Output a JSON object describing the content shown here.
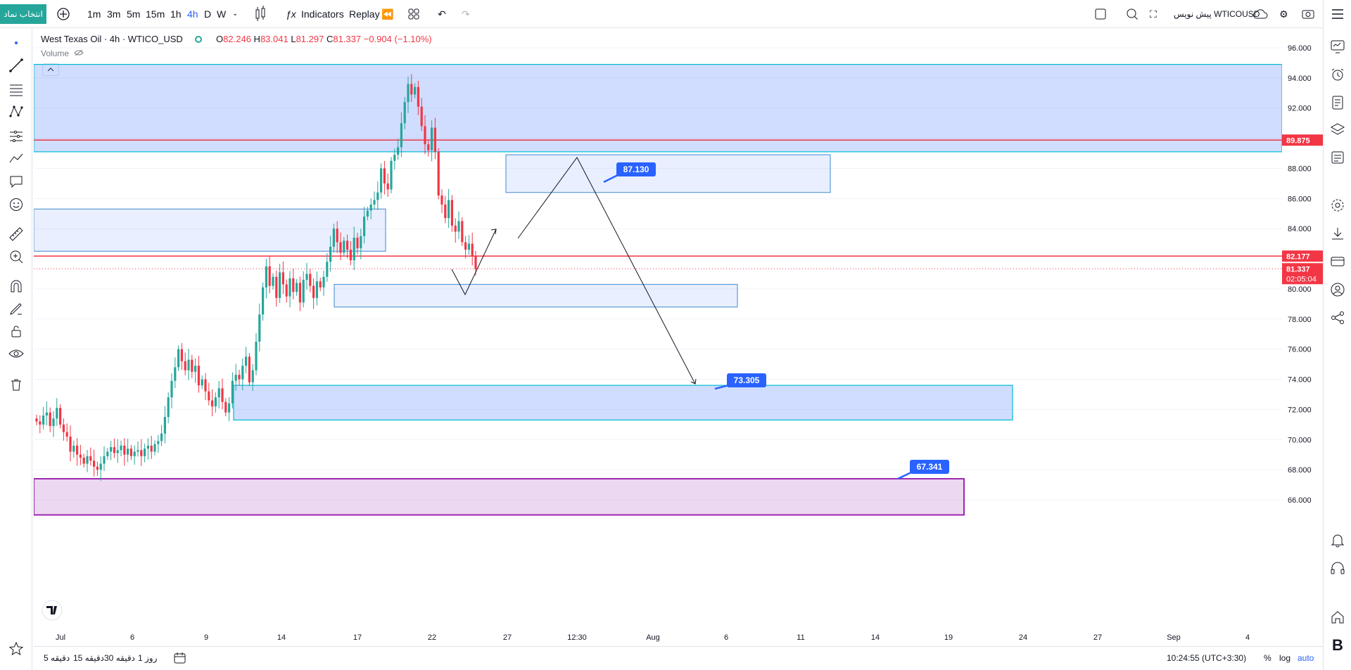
{
  "topbar": {
    "symbol_button": "انتخاب نماد",
    "timeframes": [
      "1m",
      "3m",
      "5m",
      "15m",
      "1h",
      "4h",
      "D",
      "W"
    ],
    "active_timeframe": "4h",
    "indicators_label": "Indicators",
    "replay_label": "Replay",
    "symbol_right": "WTICOUSD",
    "symbol_right_prefix": "پیش نویس"
  },
  "legend": {
    "title": "West Texas Oil · 4h · WTICO_USD",
    "open_label": "O",
    "open": "82.246",
    "high_label": "H",
    "high": "83.041",
    "low_label": "L",
    "low": "81.297",
    "close_label": "C",
    "close": "81.337",
    "change": "−0.904 (−1.10%)",
    "volume_label": "Volume"
  },
  "colors": {
    "up": "#26a69a",
    "down": "#f23645",
    "zone_blue": "#2962ff",
    "zone_purple": "#9c27b0",
    "accent": "#2962ff"
  },
  "chart_data": {
    "type": "candlestick",
    "symbol": "WTICO_USD",
    "timeframe": "4h",
    "ylim": [
      65.0,
      97.0
    ],
    "y_ticks": [
      "96.000",
      "94.000",
      "92.000",
      "90.000",
      "88.000",
      "86.000",
      "84.000",
      "82.000",
      "80.000",
      "78.000",
      "76.000",
      "74.000",
      "72.000",
      "70.000",
      "68.000",
      "66.000"
    ],
    "x_ticks": [
      "Jul",
      "6",
      "9",
      "14",
      "17",
      "22",
      "27",
      "12:30",
      "Aug",
      "6",
      "11",
      "14",
      "19",
      "24",
      "27",
      "Sep",
      "4"
    ],
    "price_tags": [
      {
        "value": "89.875",
        "color": "#f23645"
      },
      {
        "value": "82.177",
        "color": "#f23645"
      },
      {
        "value": "81.337",
        "sub": "02:05:04",
        "color": "#f23645"
      }
    ],
    "horizontal_lines": [
      89.875,
      82.177
    ],
    "zones": [
      {
        "name": "supply-zone-top",
        "y1": 89.1,
        "y2": 94.9,
        "x1": 0.0,
        "x2": 1.0,
        "color": "blue"
      },
      {
        "name": "zone-left",
        "y1": 82.5,
        "y2": 85.3,
        "x1": 0.0,
        "x2": 0.23,
        "color": "lightblue"
      },
      {
        "name": "target-zone-87",
        "y1": 86.4,
        "y2": 88.9,
        "x1": 0.3,
        "x2": 0.52,
        "color": "lightblue"
      },
      {
        "name": "demand-zone-80",
        "y1": 78.8,
        "y2": 80.3,
        "x1": 0.2,
        "x2": 0.45,
        "color": "lightblue"
      },
      {
        "name": "demand-zone-72",
        "y1": 71.3,
        "y2": 73.6,
        "x1": 0.14,
        "x2": 0.63,
        "color": "blue"
      },
      {
        "name": "purple-zone",
        "y1": 65.0,
        "y2": 67.4,
        "x1": 0.0,
        "x2": 0.6,
        "color": "purple"
      }
    ],
    "callouts": [
      "87.130",
      "73.305",
      "67.341"
    ]
  },
  "bottombar": {
    "ranges": [
      "5 دقیقه",
      "15 دقیقه",
      "30 دقیقه",
      "1 روز"
    ],
    "time": "10:24:55 (UTC+3:30)",
    "pct": "%",
    "log": "log",
    "auto": "auto"
  }
}
